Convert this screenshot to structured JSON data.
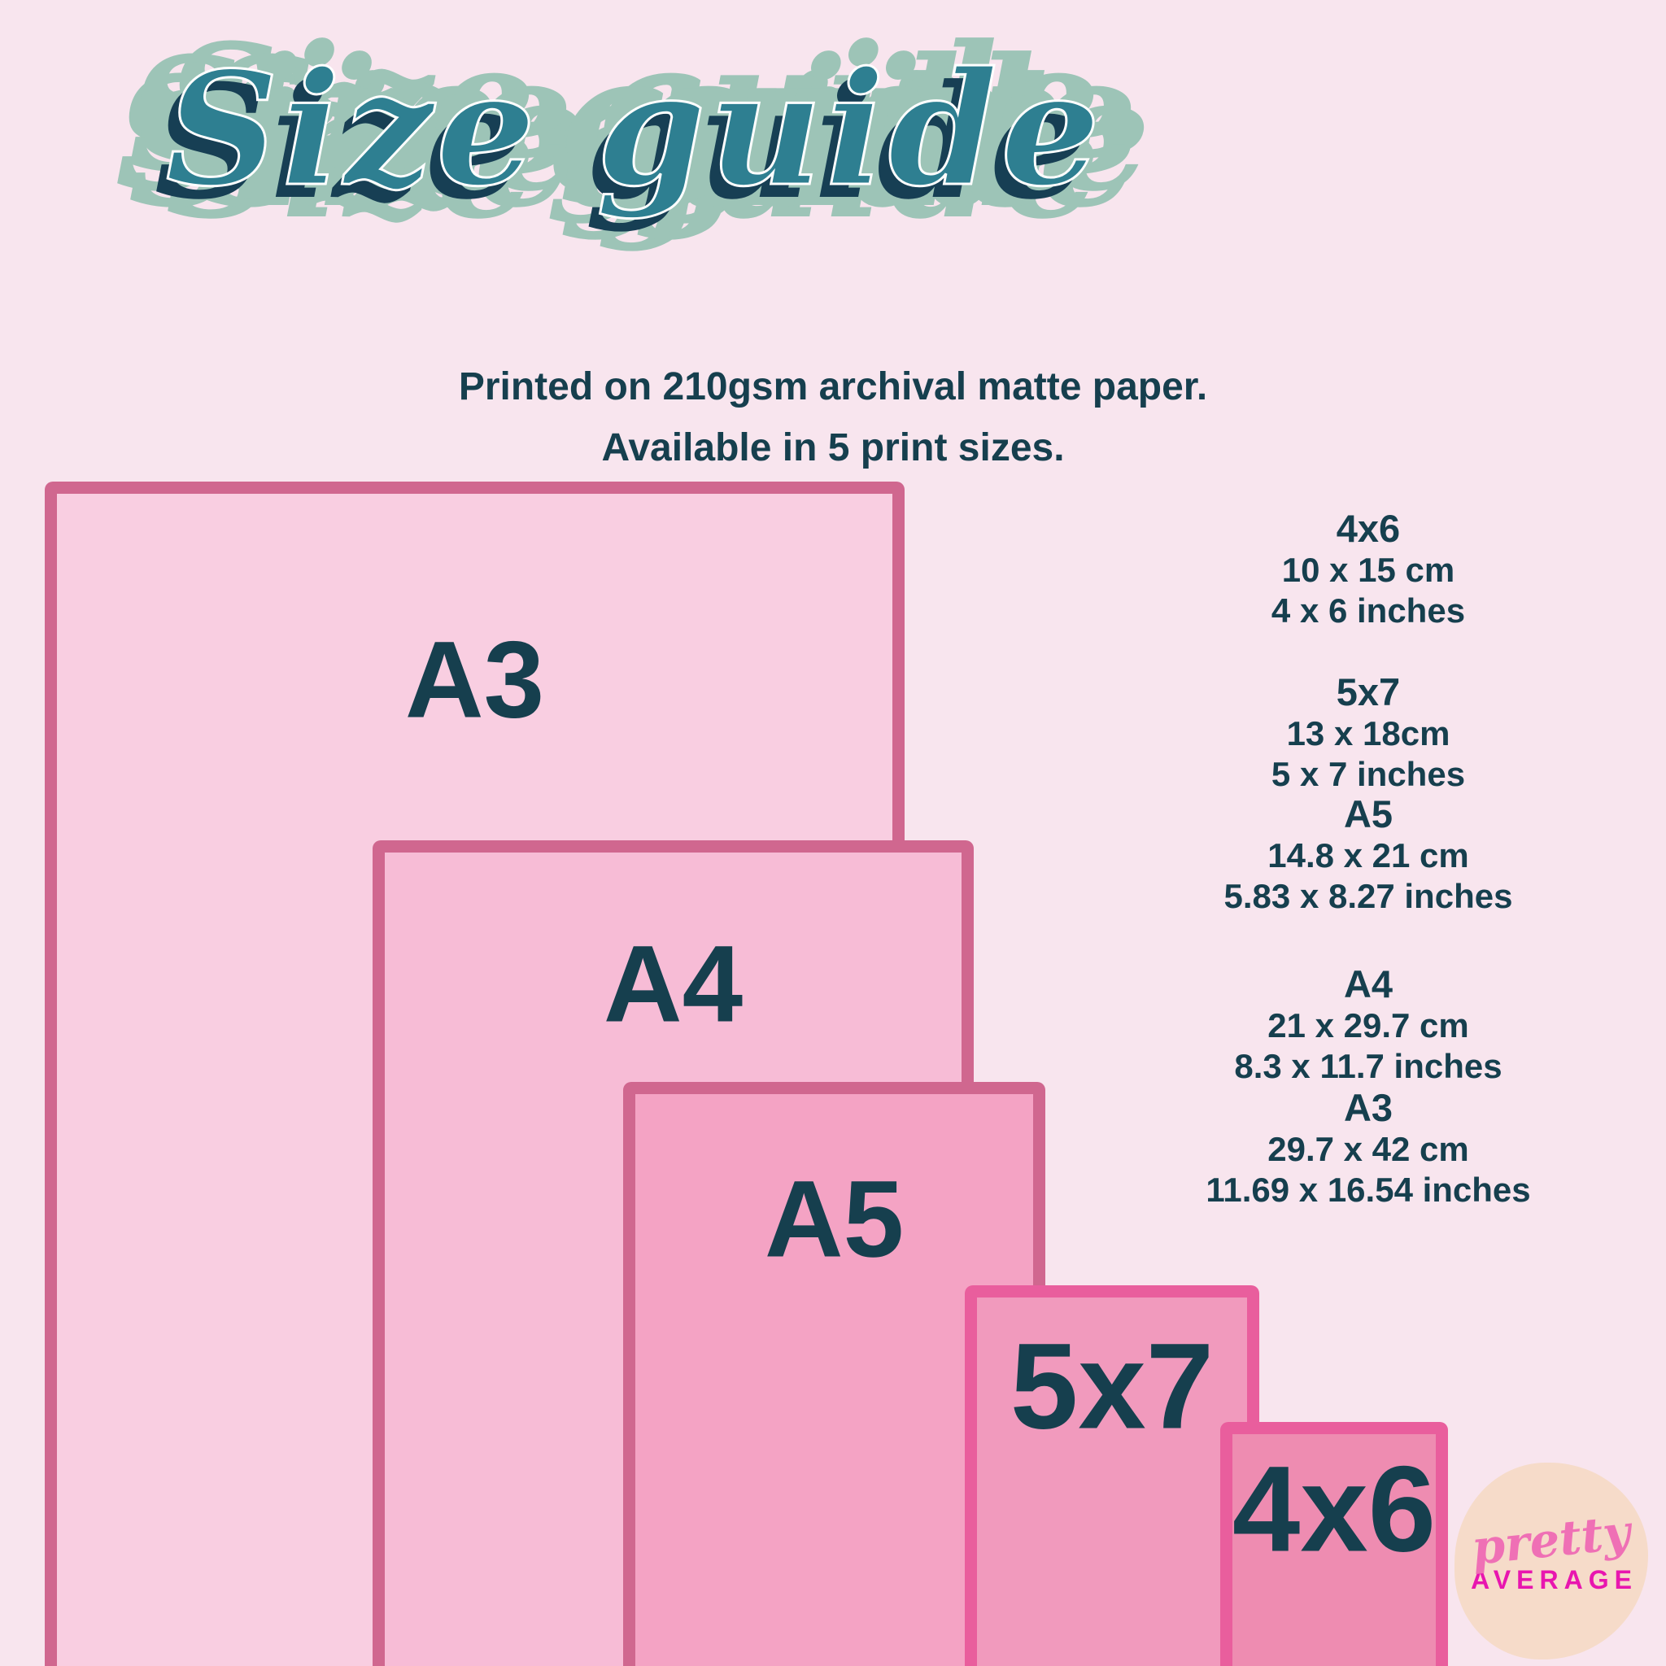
{
  "title": "Size guide",
  "subtitle": {
    "line1": "Printed on 210gsm archival matte paper.",
    "line2": "Available in 5 print sizes."
  },
  "rects": [
    {
      "label": "A3"
    },
    {
      "label": "A4"
    },
    {
      "label": "A5"
    },
    {
      "label": "5x7"
    },
    {
      "label": "4x6"
    }
  ],
  "size_list": [
    {
      "name": "4x6",
      "cm": "10 x 15 cm",
      "inches": "4 x 6 inches"
    },
    {
      "name": "5x7",
      "cm": "13 x 18cm",
      "inches": "5 x 7 inches"
    },
    {
      "name": "A5",
      "cm": "14.8 x 21 cm",
      "inches": "5.83 x 8.27 inches"
    },
    {
      "name": "A4",
      "cm": "21 x 29.7 cm",
      "inches": "8.3 x 11.7 inches"
    },
    {
      "name": "A3",
      "cm": "29.7 x 42 cm",
      "inches": "11.69 x 16.54 inches"
    }
  ],
  "logo": {
    "line1": "pretty",
    "line2": "AVERAGE"
  },
  "colors": {
    "background": "#f8e5ee",
    "a3_fill": "#f9cee1",
    "a4_fill": "#f7bcd6",
    "a5_fill": "#f4a3c4",
    "p5x7_fill": "#f19abd",
    "p4x6_fill": "#ee8cb1",
    "border_rose": "#d0678f",
    "border_bright_pink": "#e95e9d",
    "text_dark": "#163f4e",
    "title_teal": "#2e7f91",
    "title_sage": "#9dc4b7",
    "title_navy": "#173f54",
    "logo_blob": "#f6dbc9",
    "logo_pink": "#ef70b5",
    "logo_magenta": "#e816af"
  }
}
